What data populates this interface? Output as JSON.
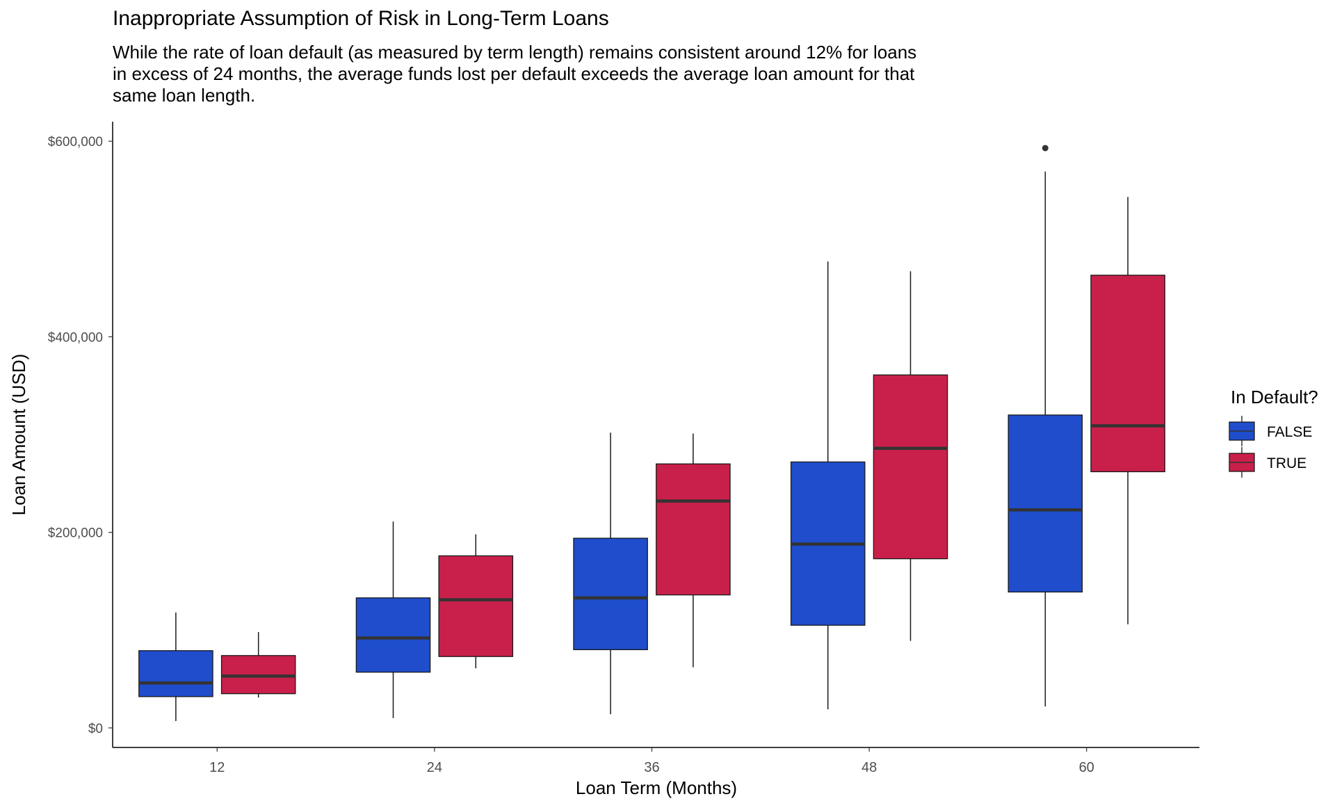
{
  "chart_data": {
    "type": "boxplot",
    "title": "Inappropriate Assumption of Risk in Long-Term Loans",
    "subtitle": "While the rate of loan default (as measured by term length) remains consistent around 12% for loans in excess of 24 months, the average funds lost per default exceeds the average loan amount for that same loan length.",
    "xlabel": "Loan Term (Months)",
    "ylabel": "Loan Amount (USD)",
    "ylim": [
      -20000,
      620000
    ],
    "yticks": [
      0,
      200000,
      400000,
      600000
    ],
    "ytick_labels": [
      "$0",
      "$200,000",
      "$400,000",
      "$600,000"
    ],
    "categories": [
      "12",
      "24",
      "36",
      "48",
      "60"
    ],
    "grid": false,
    "legend": {
      "title": "In Default?",
      "position": "right"
    },
    "series": [
      {
        "name": "FALSE",
        "color": "#1f4dcc",
        "boxes": [
          {
            "whisker_low": 7000,
            "q1": 32000,
            "median": 46000,
            "q3": 79000,
            "whisker_high": 118000,
            "outliers": []
          },
          {
            "whisker_low": 10000,
            "q1": 57000,
            "median": 92000,
            "q3": 133000,
            "whisker_high": 211000,
            "outliers": []
          },
          {
            "whisker_low": 14000,
            "q1": 80000,
            "median": 133000,
            "q3": 194000,
            "whisker_high": 302000,
            "outliers": []
          },
          {
            "whisker_low": 19000,
            "q1": 105000,
            "median": 188000,
            "q3": 272000,
            "whisker_high": 477000,
            "outliers": []
          },
          {
            "whisker_low": 22000,
            "q1": 139000,
            "median": 223000,
            "q3": 320000,
            "whisker_high": 569000,
            "outliers": [
              593000
            ]
          }
        ]
      },
      {
        "name": "TRUE",
        "color": "#c8204a",
        "boxes": [
          {
            "whisker_low": 31000,
            "q1": 35000,
            "median": 53000,
            "q3": 74000,
            "whisker_high": 98000,
            "outliers": []
          },
          {
            "whisker_low": 61000,
            "q1": 73000,
            "median": 131000,
            "q3": 176000,
            "whisker_high": 198000,
            "outliers": []
          },
          {
            "whisker_low": 62000,
            "q1": 136000,
            "median": 232000,
            "q3": 270000,
            "whisker_high": 301000,
            "outliers": []
          },
          {
            "whisker_low": 89000,
            "q1": 173000,
            "median": 286000,
            "q3": 361000,
            "whisker_high": 467000,
            "outliers": []
          },
          {
            "whisker_low": 106000,
            "q1": 262000,
            "median": 309000,
            "q3": 463000,
            "whisker_high": 543000,
            "outliers": []
          }
        ]
      }
    ]
  }
}
